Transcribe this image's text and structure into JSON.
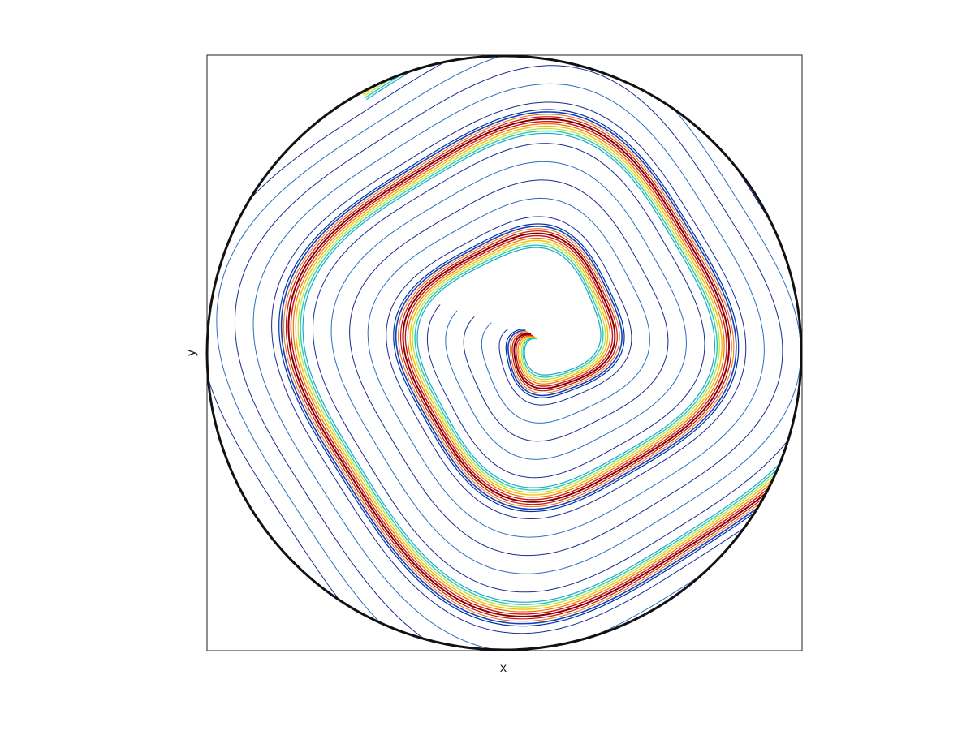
{
  "chart_data": {
    "type": "contour",
    "xlabel": "x",
    "ylabel": "y"
  }
}
